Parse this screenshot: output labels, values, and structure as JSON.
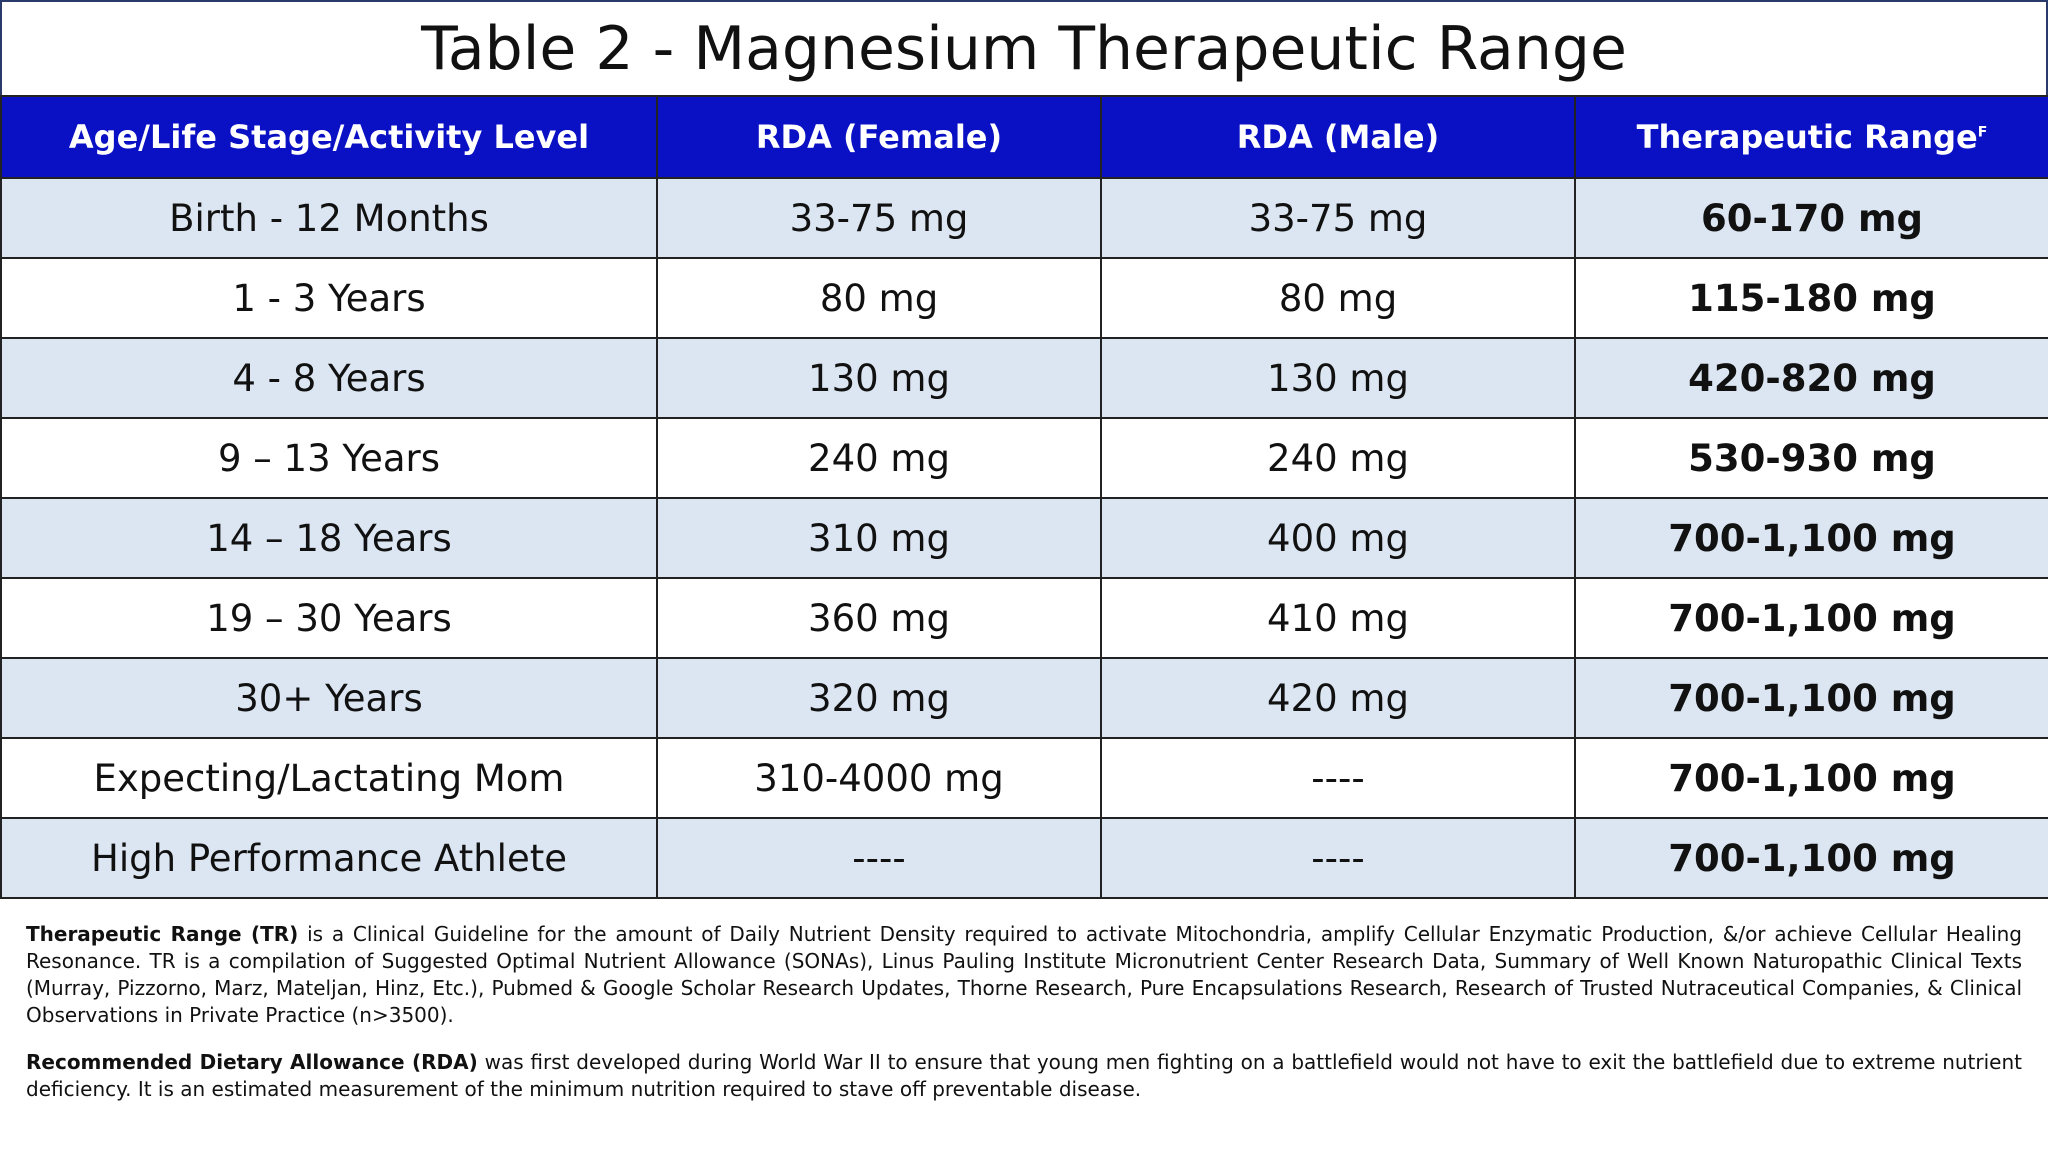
{
  "header": {
    "title": "Table 2 - Magnesium Therapeutic Range"
  },
  "table": {
    "columns": [
      "Age/Life Stage/Activity Level",
      "RDA (Female)",
      "RDA (Male)",
      "Therapeutic Range"
    ],
    "column_superscript": "F",
    "rows": [
      [
        "Birth - 12 Months",
        "33-75 mg",
        "33-75 mg",
        "60-170 mg"
      ],
      [
        "1 - 3 Years",
        "80 mg",
        "80 mg",
        "115-180 mg"
      ],
      [
        "4 - 8 Years",
        "130 mg",
        "130 mg",
        "420-820 mg"
      ],
      [
        "9 – 13 Years",
        "240 mg",
        "240 mg",
        "530-930 mg"
      ],
      [
        "14 – 18 Years",
        "310 mg",
        "400 mg",
        "700-1,100 mg"
      ],
      [
        "19 – 30 Years",
        "360 mg",
        "410 mg",
        "700-1,100 mg"
      ],
      [
        "30+ Years",
        "320 mg",
        "420 mg",
        "700-1,100 mg"
      ],
      [
        "Expecting/Lactating Mom",
        "310-4000 mg",
        "----",
        "700-1,100 mg"
      ],
      [
        "High Performance Athlete",
        "----",
        "----",
        "700-1,100 mg"
      ]
    ]
  },
  "notes": [
    {
      "term": "Therapeutic Range (TR)",
      "text": " is a Clinical Guideline for the amount  of Daily Nutrient Density required to activate Mitochondria, amplify Cellular Enzymatic Production, &/or achieve Cellular Healing Resonance. TR is a compilation of Suggested Optimal Nutrient Allowance (SONAs), Linus Pauling Institute Micronutrient Center Research Data, Summary of Well Known Naturopathic Clinical Texts (Murray, Pizzorno, Marz, Mateljan, Hinz, Etc.), Pubmed & Google Scholar Research Updates, Thorne Research, Pure Encapsulations Research, Research of Trusted Nutraceutical Companies, & Clinical Observations in Private Practice (n>3500)."
    },
    {
      "term": "Recommended Dietary Allowance (RDA)",
      "text": " was first developed during World War II to ensure that young men fighting on a battlefield would not have to exit the battlefield due to extreme nutrient deficiency. It is an estimated measurement of the minimum nutrition required to stave off preventable disease."
    }
  ]
}
